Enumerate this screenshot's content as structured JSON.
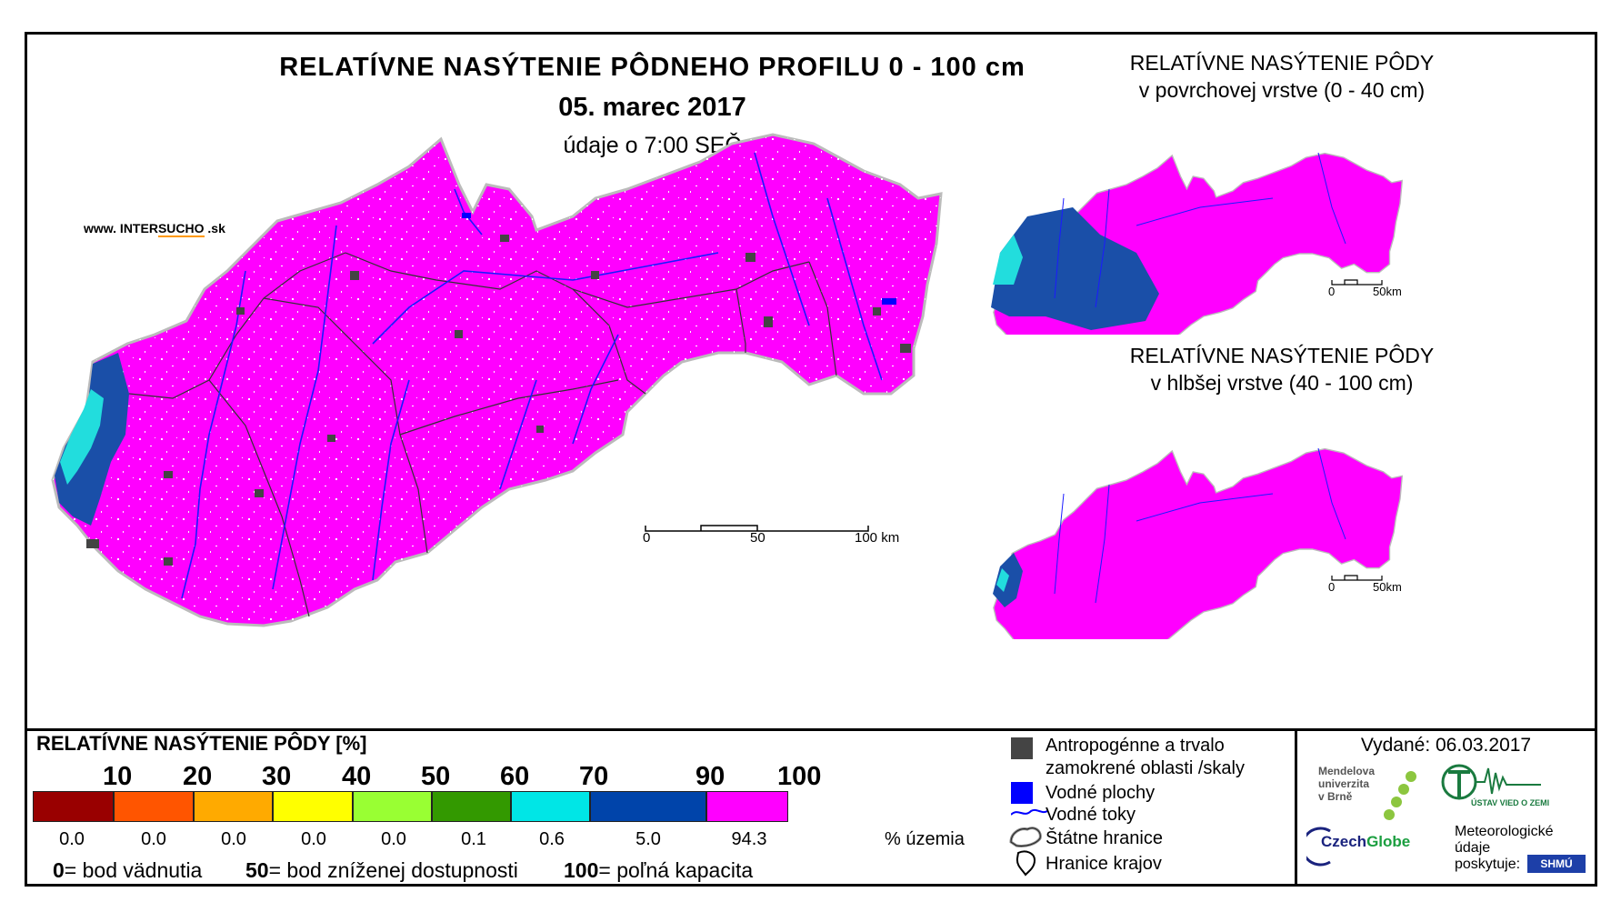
{
  "title": {
    "main": "RELATÍVNE NASÝTENIE PÔDNEHO PROFILU 0 - 100 cm",
    "date": "05. marec 2017",
    "time": "údaje o 7:00 SEČ"
  },
  "website": {
    "prefix": "www. INTER",
    "highlight": "SUCHO",
    "suffix": " .sk"
  },
  "main_scale": {
    "labels": [
      "0",
      "50",
      "100 km"
    ]
  },
  "insets": [
    {
      "title_line1": "RELATÍVNE NASÝTENIE PÔDY",
      "title_line2": "v povrchovej vrstve (0 - 40 cm)",
      "scale": [
        "0",
        "50km"
      ]
    },
    {
      "title_line1": "RELATÍVNE NASÝTENIE PÔDY",
      "title_line2": "v hlbšej vrstve (40 - 100 cm)",
      "scale": [
        "0",
        "50km"
      ]
    }
  ],
  "legend": {
    "title": "RELATÍVNE NASÝTENIE PÔDY [%]",
    "class_breaks": [
      "10",
      "20",
      "30",
      "40",
      "50",
      "60",
      "70",
      "90",
      "100"
    ],
    "classes": [
      {
        "color": "#990000",
        "percent": 0.0,
        "percent_label": "0.0"
      },
      {
        "color": "#ff5500",
        "percent": 0.0,
        "percent_label": "0.0"
      },
      {
        "color": "#ffaa00",
        "percent": 0.0,
        "percent_label": "0.0"
      },
      {
        "color": "#ffff00",
        "percent": 0.0,
        "percent_label": "0.0"
      },
      {
        "color": "#99ff33",
        "percent": 0.0,
        "percent_label": "0.0"
      },
      {
        "color": "#339900",
        "percent": 0.1,
        "percent_label": "0.1"
      },
      {
        "color": "#00e6e6",
        "percent": 0.6,
        "percent_label": "0.6"
      },
      {
        "color": "#0044aa",
        "percent": 5.0,
        "percent_label": "5.0"
      },
      {
        "color": "#ff00ff",
        "percent": 94.3,
        "percent_label": "94.3"
      }
    ],
    "percent_unit": "% územia",
    "definitions": [
      {
        "value": "0",
        "text": "= bod vädnutia"
      },
      {
        "value": "50",
        "text": "= bod zníženej dostupnosti"
      },
      {
        "value": "100",
        "text": "= poľná kapacita"
      }
    ]
  },
  "symbols": [
    {
      "label": "Antropogénne a trvalo",
      "label2": "zamokrené oblasti /skaly",
      "icon": "gray-square-icon",
      "color": "#444444"
    },
    {
      "label": "Vodné plochy",
      "icon": "blue-square-icon",
      "color": "#0000ff"
    },
    {
      "label": "Vodné toky",
      "icon": "river-line-icon",
      "color": "#0000ff"
    },
    {
      "label": "Štátne hranice",
      "icon": "state-border-icon"
    },
    {
      "label": "Hranice krajov",
      "icon": "region-border-icon"
    }
  ],
  "issued": "Vydané: 06.03.2017",
  "logos": {
    "mendel": [
      "Mendelova",
      "univerzita",
      "v Brně"
    ],
    "czechglobe_a": "Czech",
    "czechglobe_b": "Globe",
    "ustav": "ÚSTAV VIED O ZEMI",
    "meteo": [
      "Meteorologické",
      "údaje",
      "poskytuje:"
    ],
    "shmu": "SHMÚ"
  },
  "colors": {
    "magenta": "#ff00ff",
    "dark_blue": "#0044aa",
    "cyan": "#00e6e6",
    "river": "#1a1aff"
  }
}
